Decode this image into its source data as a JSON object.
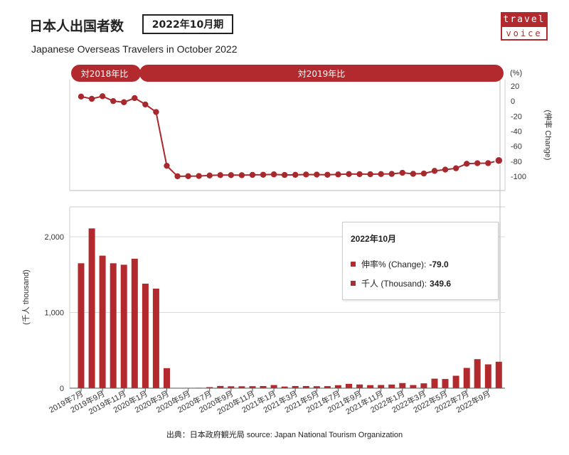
{
  "header": {
    "title": "日本人出国者数",
    "period_badge": "2022年10月期",
    "subtitle": "Japanese Overseas Travelers in October 2022",
    "logo_top": "travel",
    "logo_bottom": "voice",
    "source": "出典：日本政府観光局  source: Japan National Tourism Organization"
  },
  "colors": {
    "accent": "#b22a2e",
    "bar": "#b22a2e",
    "line": "#a8292d",
    "grid": "#d9d9d9"
  },
  "tooltip": {
    "title": "2022年10月",
    "change_label": "伸率% (Change):",
    "change_value": "-79.0",
    "thousand_label": "千人 (Thousand):",
    "thousand_value": "349.6"
  },
  "chart_data": [
    {
      "type": "line",
      "title": "",
      "band_labels": [
        "対2018年比",
        "対2019年比"
      ],
      "ylabel": "(伸率 Change)",
      "yunit": "(%)",
      "ylim": [
        -120,
        20
      ],
      "yticks": [
        20,
        0,
        -20,
        -40,
        -60,
        -80,
        -100
      ],
      "x": [
        "2019年7月",
        "2019年8月",
        "2019年9月",
        "2019年10月",
        "2019年11月",
        "2019年12月",
        "2020年1月",
        "2020年2月",
        "2020年3月",
        "2020年4月",
        "2020年5月",
        "2020年6月",
        "2020年7月",
        "2020年8月",
        "2020年9月",
        "2020年10月",
        "2020年11月",
        "2020年12月",
        "2021年1月",
        "2021年2月",
        "2021年3月",
        "2021年4月",
        "2021年5月",
        "2021年6月",
        "2021年7月",
        "2021年8月",
        "2021年9月",
        "2021年10月",
        "2021年11月",
        "2021年12月",
        "2022年1月",
        "2022年2月",
        "2022年3月",
        "2022年4月",
        "2022年5月",
        "2022年6月",
        "2022年7月",
        "2022年8月",
        "2022年9月",
        "2022年10月"
      ],
      "series": [
        {
          "values": [
            6.0,
            3.0,
            6.5,
            0.0,
            -1.5,
            4.0,
            -4.5,
            -14.5,
            -86.0,
            -99.9,
            -99.8,
            -99.6,
            -98.9,
            -98.4,
            -98.4,
            -98.5,
            -98.1,
            -97.9,
            -97.4,
            -98.2,
            -98.0,
            -97.6,
            -97.7,
            -97.9,
            -97.5,
            -97.0,
            -97.1,
            -97.2,
            -97.0,
            -96.8,
            -95.3,
            -96.7,
            -96.3,
            -92.8,
            -91.1,
            -89.3,
            -83.3,
            -82.6,
            -82.5,
            -79.0
          ]
        }
      ]
    },
    {
      "type": "bar",
      "ylabel": "(千人 thousand)",
      "ylim": [
        0,
        2400
      ],
      "yticks": [
        0,
        1000,
        2000
      ],
      "ytick_labels": [
        "0",
        "1,000",
        "2,000"
      ],
      "categories": [
        "2019年7月",
        "2019年8月",
        "2019年9月",
        "2019年10月",
        "2019年11月",
        "2019年12月",
        "2020年1月",
        "2020年2月",
        "2020年3月",
        "2020年4月",
        "2020年5月",
        "2020年6月",
        "2020年7月",
        "2020年8月",
        "2020年9月",
        "2020年10月",
        "2020年11月",
        "2020年12月",
        "2021年1月",
        "2021年2月",
        "2021年3月",
        "2021年4月",
        "2021年5月",
        "2021年6月",
        "2021年7月",
        "2021年8月",
        "2021年9月",
        "2021年10月",
        "2021年11月",
        "2021年12月",
        "2022年1月",
        "2022年2月",
        "2022年3月",
        "2022年4月",
        "2022年5月",
        "2022年6月",
        "2022年7月",
        "2022年8月",
        "2022年9月",
        "2022年10月"
      ],
      "tick_labels": [
        "2019年7月",
        "2019年9月",
        "2019年11月",
        "2020年1月",
        "2020年3月",
        "2020年5月",
        "2020年7月",
        "2020年9月",
        "2020年11月",
        "2021年1月",
        "2021年3月",
        "2021年5月",
        "2021年7月",
        "2021年9月",
        "2021年11月",
        "2022年1月",
        "2022年3月",
        "2022年5月",
        "2022年7月",
        "2022年9月"
      ],
      "series": [
        {
          "values": [
            1650,
            2110,
            1750,
            1650,
            1630,
            1710,
            1380,
            1315,
            265,
            4,
            3,
            6,
            14,
            29,
            25,
            25,
            26,
            28,
            41,
            22,
            28,
            28,
            26,
            27,
            39,
            57,
            49,
            40,
            42,
            48,
            68,
            41,
            64,
            126,
            121,
            164,
            268,
            383,
            315,
            349.6
          ]
        }
      ]
    }
  ]
}
